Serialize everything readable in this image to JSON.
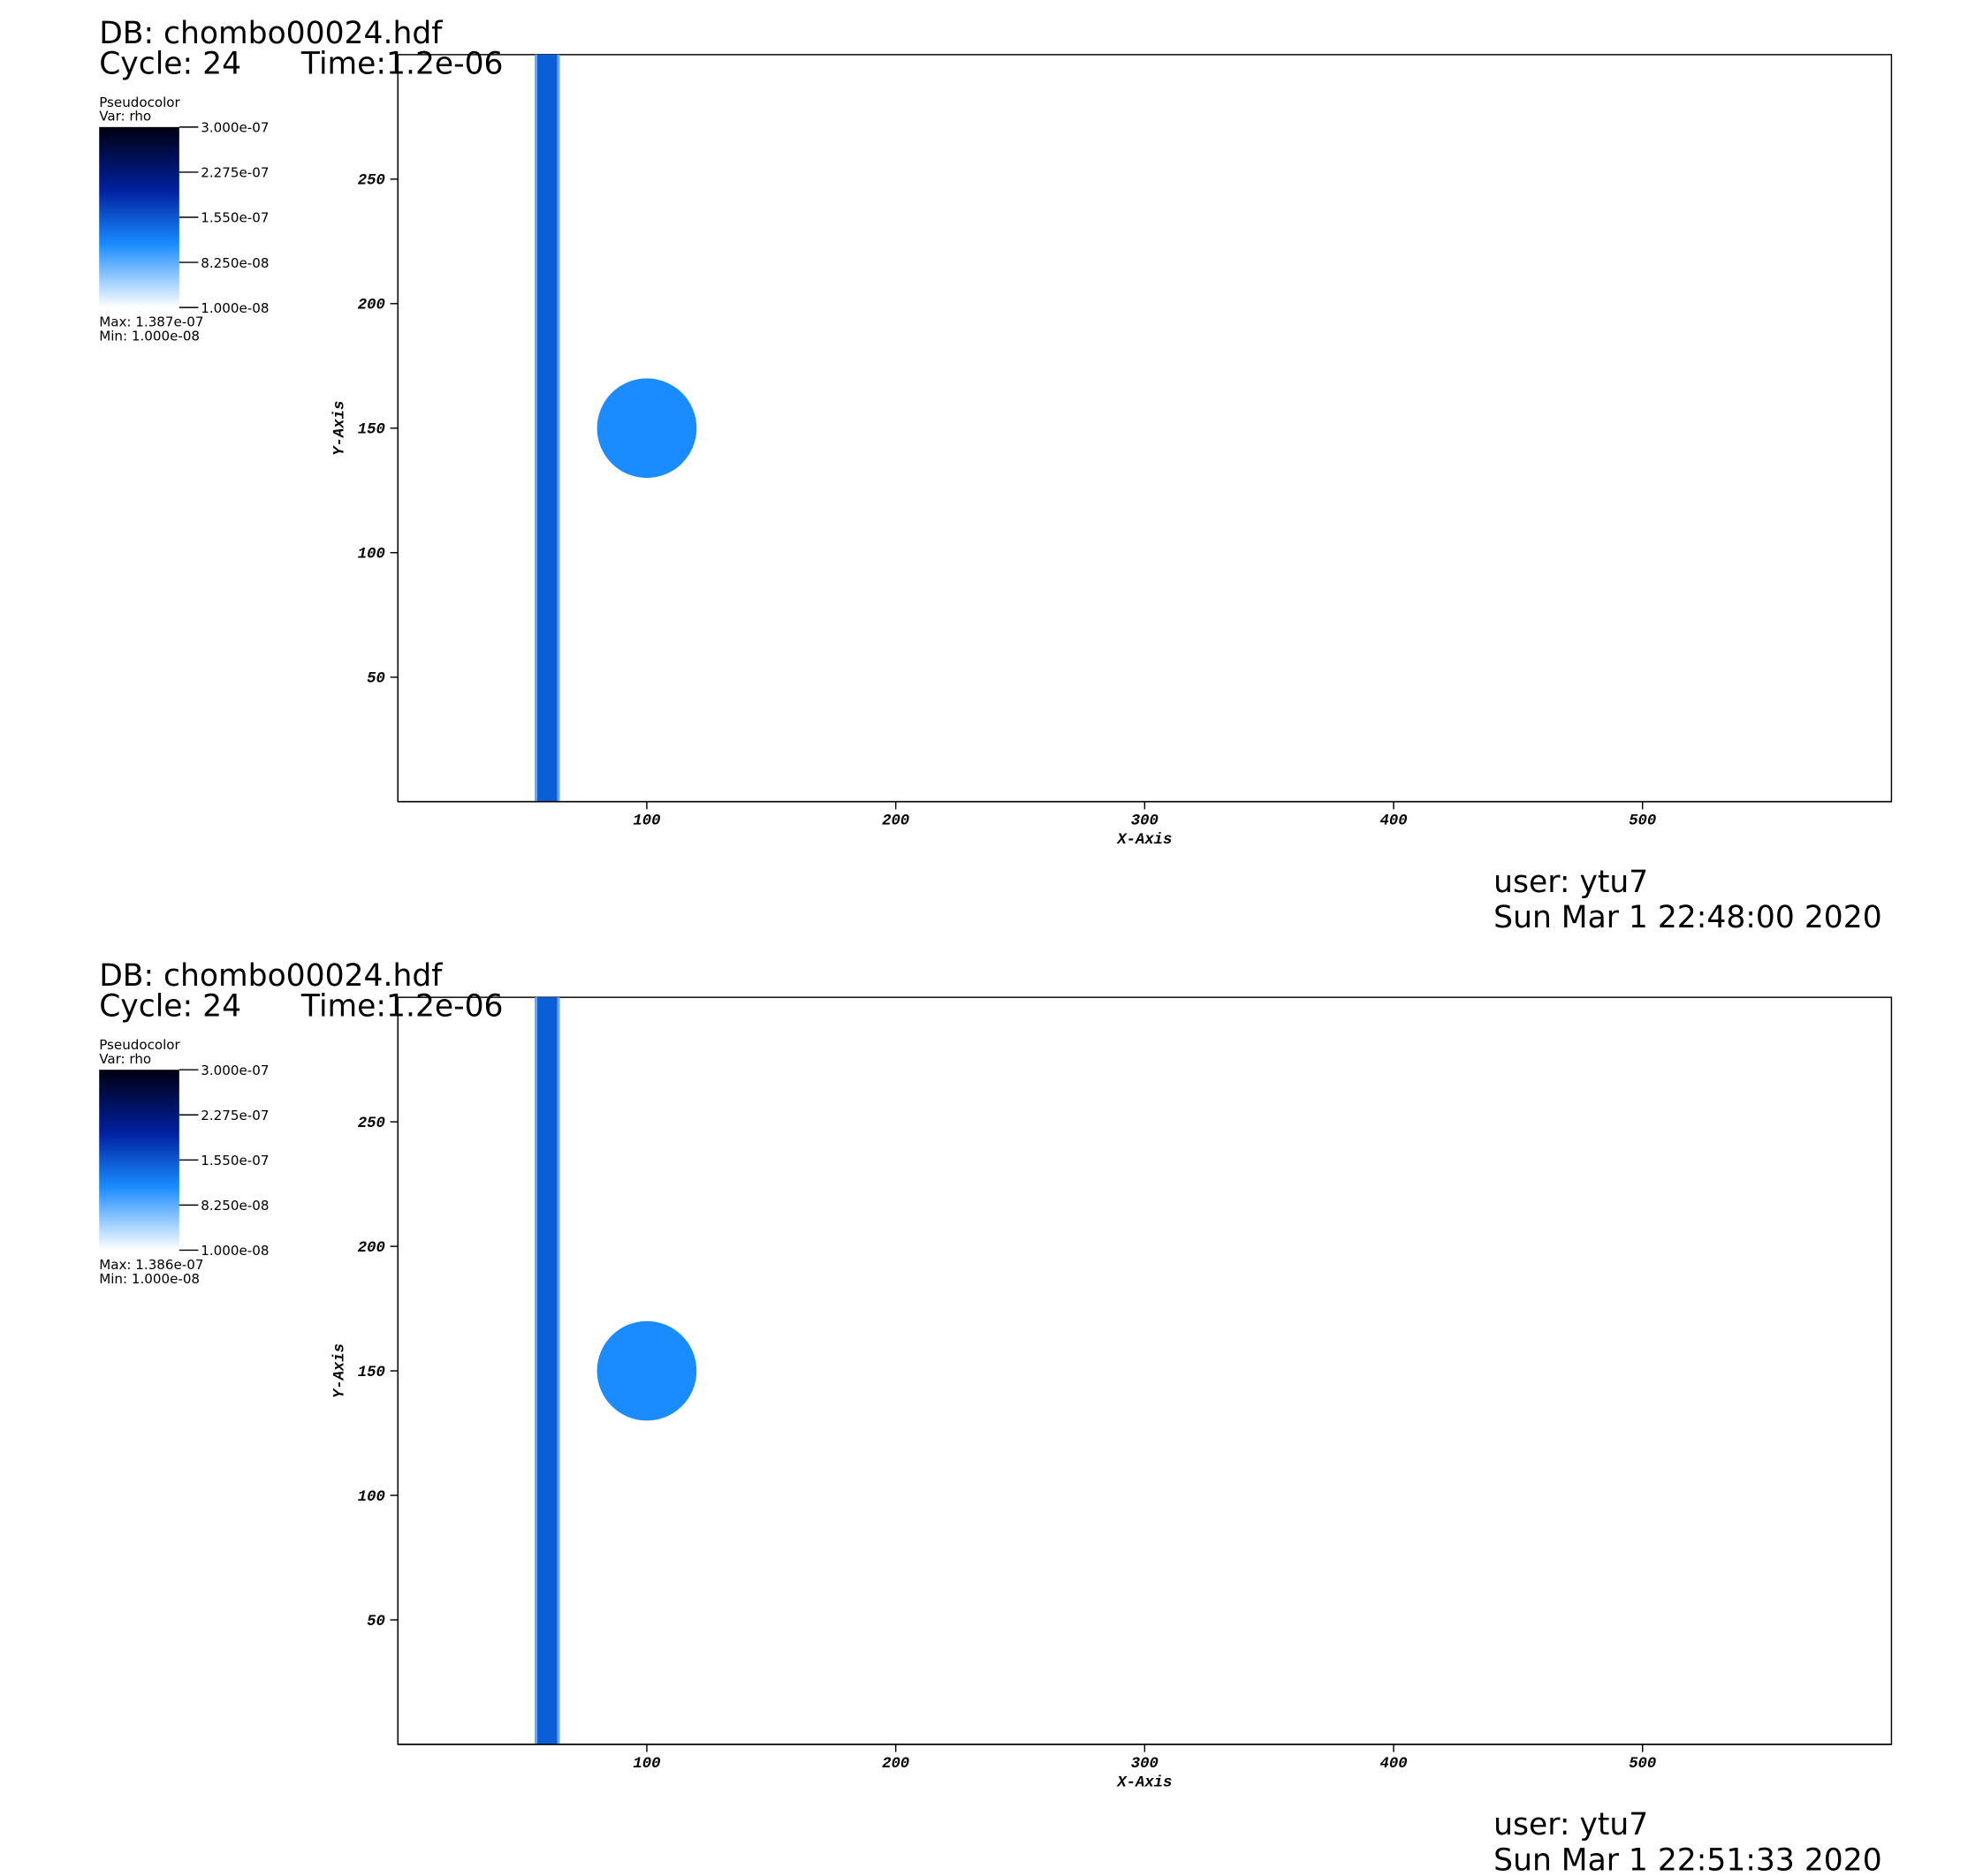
{
  "chart_data": [
    {
      "type": "pseudocolor",
      "db": "DB: chombo00024.hdf",
      "cycle": "Cycle: 24",
      "time": "Time:1.2e-06",
      "legend": {
        "title": "Pseudocolor",
        "var": "Var: rho",
        "max": "Max:  1.387e-07",
        "min": "Min:  1.000e-08"
      },
      "clim": [
        1e-08,
        3e-07
      ],
      "cticks": [
        {
          "value": 3e-07,
          "label": "3.000e-07"
        },
        {
          "value": 2.275e-07,
          "label": "2.275e-07"
        },
        {
          "value": 1.55e-07,
          "label": "1.550e-07"
        },
        {
          "value": 8.25e-08,
          "label": "8.250e-08"
        },
        {
          "value": 1e-08,
          "label": "1.000e-08"
        }
      ],
      "xlim": [
        0,
        600
      ],
      "ylim": [
        0,
        300
      ],
      "xticks": [
        100,
        200,
        300,
        400,
        500
      ],
      "yticks": [
        50,
        100,
        150,
        200,
        250
      ],
      "xlabel": "X-Axis",
      "ylabel": "Y-Axis",
      "band": {
        "x": [
          55,
          65
        ],
        "color": "#0a5fd6"
      },
      "circle": {
        "cx": 100,
        "cy": 150,
        "r": 20,
        "color": "#1a8cff"
      },
      "user": "user: ytu7",
      "date": "Sun Mar  1 22:48:00 2020"
    },
    {
      "type": "pseudocolor",
      "db": "DB: chombo00024.hdf",
      "cycle": "Cycle: 24",
      "time": "Time:1.2e-06",
      "legend": {
        "title": "Pseudocolor",
        "var": "Var: rho",
        "max": "Max:  1.386e-07",
        "min": "Min:  1.000e-08"
      },
      "clim": [
        1e-08,
        3e-07
      ],
      "cticks": [
        {
          "value": 3e-07,
          "label": "3.000e-07"
        },
        {
          "value": 2.275e-07,
          "label": "2.275e-07"
        },
        {
          "value": 1.55e-07,
          "label": "1.550e-07"
        },
        {
          "value": 8.25e-08,
          "label": "8.250e-08"
        },
        {
          "value": 1e-08,
          "label": "1.000e-08"
        }
      ],
      "xlim": [
        0,
        600
      ],
      "ylim": [
        0,
        300
      ],
      "xticks": [
        100,
        200,
        300,
        400,
        500
      ],
      "yticks": [
        50,
        100,
        150,
        200,
        250
      ],
      "xlabel": "X-Axis",
      "ylabel": "Y-Axis",
      "band": {
        "x": [
          55,
          65
        ],
        "color": "#0a5fd6"
      },
      "circle": {
        "cx": 100,
        "cy": 150,
        "r": 20,
        "color": "#1a8cff"
      },
      "user": "user: ytu7",
      "date": "Sun Mar  1 22:51:33 2020"
    }
  ]
}
